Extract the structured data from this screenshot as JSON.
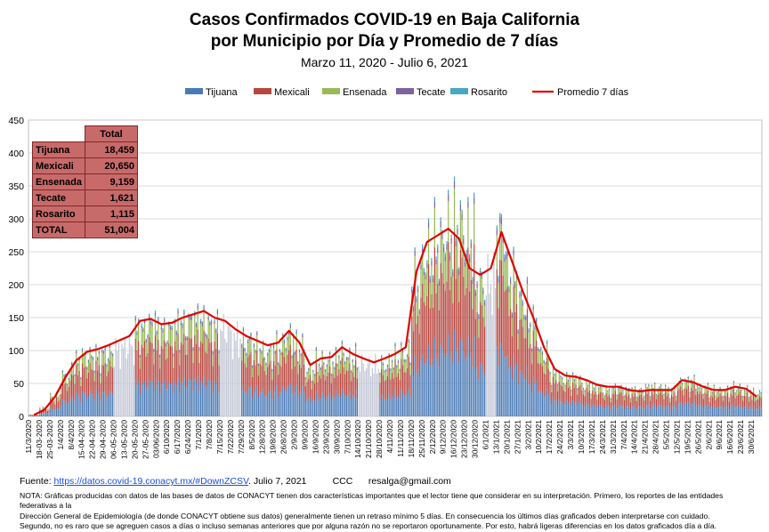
{
  "header": {
    "title_line1": "Casos Confirmados COVID-19 en Baja California",
    "title_line2": "por Municipio por Día y Promedio de 7 días",
    "subtitle": "Marzo 11, 2020  - Julio 6, 2021"
  },
  "totals_table": {
    "header": "Total",
    "rows": [
      {
        "label": "Tijuana",
        "value": "18,459"
      },
      {
        "label": "Mexicali",
        "value": "20,650"
      },
      {
        "label": "Ensenada",
        "value": "9,159"
      },
      {
        "label": "Tecate",
        "value": "1,621"
      },
      {
        "label": "Rosarito",
        "value": "1,115"
      },
      {
        "label": "TOTAL",
        "value": "51,004"
      }
    ]
  },
  "footer": {
    "source_label": "Fuente:",
    "source_link": "https://datos.covid-19.conacyt.mx/#DownZCSV",
    "source_date": "Julio 7, 2021",
    "ccc": "CCC",
    "email": "resalga@gmail.com",
    "note_line1": "NOTA: Gráficas producidas con datos de las bases de datos de CONACYT tienen dos características importantes que el lector tiene que considerar en su interpretación. Primero, los reportes de las entidades federativas a la",
    "note_line2": "Dirección General de Epidemiología (de donde CONACYT obtiene sus datos) generalmente tienen un retraso mínimo 5 días. En consecuencia los últimos días graficados deben interpretarse con cuidado.",
    "note_line3": "Segundo, no es raro que se agreguen casos a días o incluso semanas anteriores que por alguna razón no se reportaron oportunamente. Por esto, habrá ligeras diferencias en los datos graficados día a día."
  },
  "chart_data": {
    "type": "bar",
    "stacked": true,
    "ylim": [
      0,
      450
    ],
    "yticks": [
      0,
      50,
      100,
      150,
      200,
      250,
      300,
      350,
      400,
      450
    ],
    "grid": true,
    "legend_position": "top",
    "xticks": [
      "11/3/2020",
      "18-03-2020",
      "25-03-2020",
      "1/4/2020",
      "8/4/2020",
      "15-04-2020",
      "22-04-2020",
      "29-04-2020",
      "06-05-2020",
      "13-05-2020",
      "20-05-2020",
      "27-05-2020",
      "03/06/2020",
      "6/10/2020",
      "6/17/2020",
      "6/24/2020",
      "7/1/2020",
      "7/8/2020",
      "7/15/2020",
      "7/22/2020",
      "7/29/2020",
      "8/5/2020",
      "12/8/2020",
      "19/8/2020",
      "26/8/2020",
      "2/9/2020",
      "9/9/2020",
      "16/9/2020",
      "23/9/2020",
      "30/9/2020",
      "7/10/2020",
      "14/10/2020",
      "21/10/2020",
      "28/10/2020",
      "4/11/2020",
      "11/11/2020",
      "18/11/2020",
      "25/11/2020",
      "2/12/2020",
      "9/12/2020",
      "16/12/2020",
      "23/12/2020",
      "30/12/2020",
      "6/1/2021",
      "13/1/2021",
      "20/1/2021",
      "27/1/2021",
      "3/2/2021",
      "10/2/2021",
      "17/2/2021",
      "24/2/2021",
      "3/3/2021",
      "10/3/2021",
      "17/3/2021",
      "24/3/2021",
      "31/3/2021",
      "7/4/2021",
      "14/4/2021",
      "21/4/2021",
      "28/4/2021",
      "5/5/2021",
      "12/5/2021",
      "19/5/2021",
      "26/5/2021",
      "2/6/2021",
      "9/6/2021",
      "16/6/2021",
      "23/6/2021",
      "30/6/2021"
    ],
    "weekly_total": [
      3,
      15,
      35,
      70,
      95,
      105,
      105,
      110,
      115,
      120,
      150,
      160,
      150,
      150,
      160,
      165,
      165,
      155,
      150,
      135,
      130,
      120,
      110,
      120,
      140,
      120,
      80,
      95,
      95,
      110,
      100,
      90,
      85,
      90,
      100,
      110,
      230,
      280,
      300,
      320,
      330,
      310,
      230,
      230,
      320,
      240,
      200,
      160,
      110,
      75,
      65,
      65,
      55,
      50,
      45,
      50,
      45,
      45,
      50,
      50,
      45,
      60,
      60,
      50,
      45,
      45,
      50,
      45,
      40
    ],
    "mix": {
      "Tijuana": 0.36,
      "Mexicali": 0.41,
      "Ensenada": 0.18,
      "Tecate": 0.03,
      "Rosarito": 0.02
    },
    "promedio_7_dias": [
      2,
      10,
      30,
      60,
      85,
      98,
      102,
      108,
      115,
      122,
      145,
      148,
      140,
      142,
      150,
      155,
      160,
      150,
      145,
      132,
      122,
      115,
      108,
      112,
      130,
      112,
      78,
      88,
      90,
      105,
      95,
      88,
      82,
      88,
      95,
      105,
      220,
      265,
      275,
      285,
      270,
      225,
      215,
      225,
      280,
      235,
      190,
      150,
      105,
      72,
      62,
      60,
      55,
      48,
      45,
      45,
      40,
      38,
      40,
      40,
      40,
      55,
      52,
      45,
      40,
      40,
      45,
      42,
      30
    ],
    "grey_weeks": [
      8,
      9,
      18,
      19,
      31,
      32,
      43
    ],
    "series": [
      {
        "name": "Tijuana",
        "color": "#4a7ab5"
      },
      {
        "name": "Mexicali",
        "color": "#b8463f"
      },
      {
        "name": "Ensenada",
        "color": "#98b957"
      },
      {
        "name": "Tecate",
        "color": "#7a62a3"
      },
      {
        "name": "Rosarito",
        "color": "#46a8c4"
      },
      {
        "name": "Promedio 7 días",
        "color": "#e00000"
      }
    ]
  }
}
